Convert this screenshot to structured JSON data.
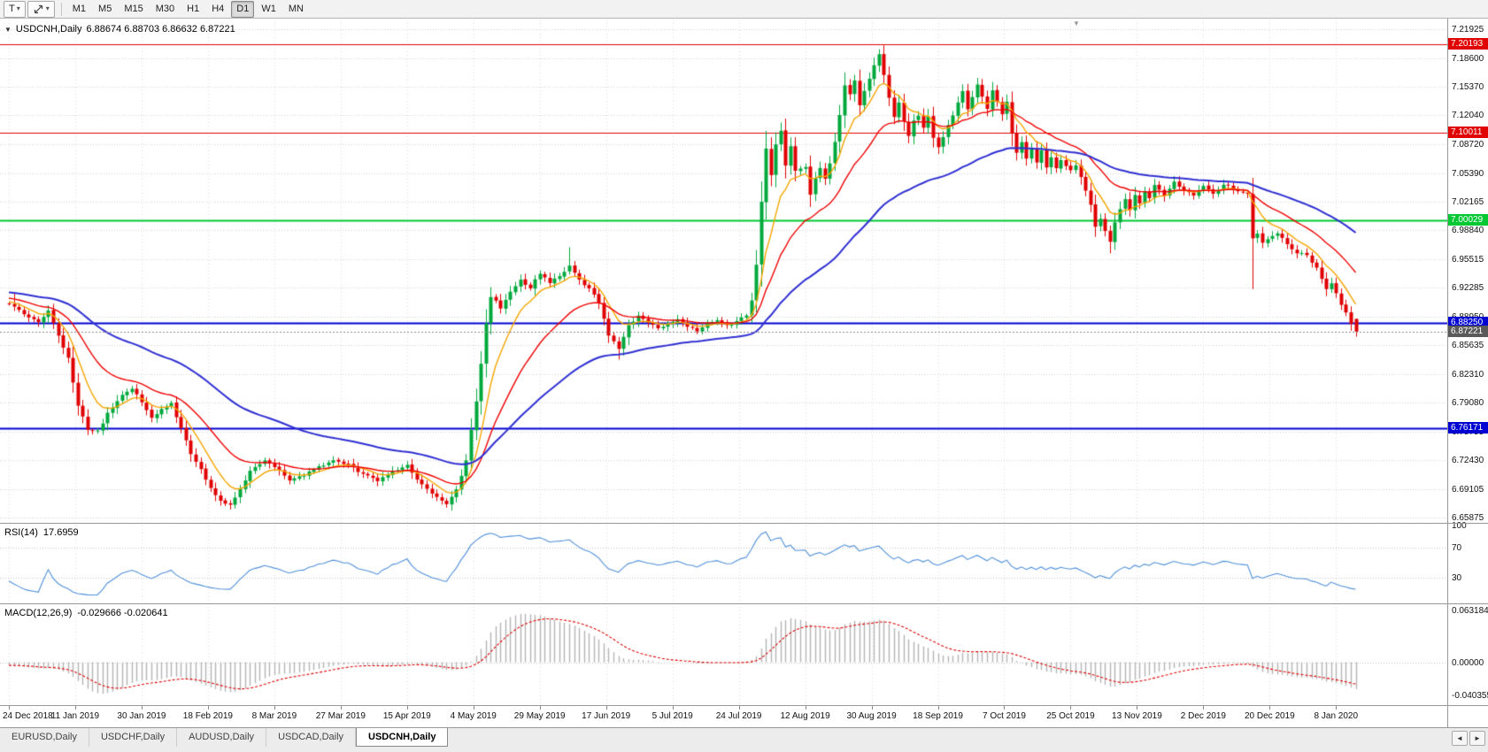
{
  "toolbar": {
    "text_tool": {
      "label": "T"
    },
    "timeframes": [
      {
        "label": "M1",
        "active": false
      },
      {
        "label": "M5",
        "active": false
      },
      {
        "label": "M15",
        "active": false
      },
      {
        "label": "M30",
        "active": false
      },
      {
        "label": "H1",
        "active": false
      },
      {
        "label": "H4",
        "active": false
      },
      {
        "label": "D1",
        "active": true
      },
      {
        "label": "W1",
        "active": false
      },
      {
        "label": "MN",
        "active": false
      }
    ]
  },
  "icons": {
    "dropdown": "▾",
    "title_marker": "▼",
    "shift_marker": "▼",
    "tab_prev": "◄",
    "tab_next": "►"
  },
  "chart": {
    "title": "USDCNH,Daily",
    "ohlc_text": "6.88674 6.88703 6.86632 6.87221"
  },
  "price_axis": {
    "ticks": [
      "7.21925",
      "7.18600",
      "7.15370",
      "7.12040",
      "7.08720",
      "7.05390",
      "7.02165",
      "6.98840",
      "6.95515",
      "6.92285",
      "6.88950",
      "6.85635",
      "6.82310",
      "6.79080",
      "6.75755",
      "6.72430",
      "6.69105",
      "6.65875"
    ]
  },
  "hlines": [
    {
      "label": "7.20193",
      "value": 7.20193,
      "color": "#e00000"
    },
    {
      "label": "7.10011",
      "value": 7.10011,
      "color": "#e00000"
    },
    {
      "label": "7.00029",
      "value": 7.00029,
      "color": "#00c832"
    },
    {
      "label": "6.88250",
      "value": 6.8825,
      "color": "#0000d2"
    },
    {
      "label": "6.76171",
      "value": 6.76171,
      "color": "#0000d2"
    }
  ],
  "current_price": {
    "label": "6.87221",
    "value": 6.87221,
    "badge_color": "#5a5a5a",
    "line_color": "#8a8a8a"
  },
  "rsi_panel": {
    "name": "RSI(14)",
    "value": "17.6959",
    "axis_labels": [
      [
        "100",
        100
      ],
      [
        "70",
        70
      ],
      [
        "30",
        30
      ]
    ],
    "levels": [
      70,
      30
    ],
    "line_color": "#4f8fd9"
  },
  "macd_panel": {
    "name": "MACD(12,26,9)",
    "values": "-0.029666 -0.020641",
    "axis_labels": [
      [
        "0.063184",
        0.063184
      ],
      [
        "0.00000",
        0
      ],
      [
        "-0.040355",
        -0.040355
      ]
    ],
    "hist_color": "#b4b4b4",
    "signal_color": "#dd0000"
  },
  "date_axis": {
    "labels": [
      "24 Dec 2018",
      "11 Jan 2019",
      "30 Jan 2019",
      "18 Feb 2019",
      "8 Mar 2019",
      "27 Mar 2019",
      "15 Apr 2019",
      "4 May 2019",
      "29 May 2019",
      "17 Jun 2019",
      "5 Jul 2019",
      "24 Jul 2019",
      "12 Aug 2019",
      "30 Aug 2019",
      "18 Sep 2019",
      "7 Oct 2019",
      "25 Oct 2019",
      "13 Nov 2019",
      "2 Dec 2019",
      "20 Dec 2019",
      "8 Jan 2020"
    ]
  },
  "tabs": [
    {
      "label": "EURUSD,Daily",
      "active": false
    },
    {
      "label": "USDCHF,Daily",
      "active": false
    },
    {
      "label": "AUDUSD,Daily",
      "active": false
    },
    {
      "label": "USDCAD,Daily",
      "active": false
    },
    {
      "label": "USDCNH,Daily",
      "active": true
    }
  ],
  "chart_data": {
    "type": "candlestick",
    "symbol": "USDCNH",
    "timeframe": "Daily",
    "title": "USDCNH,Daily",
    "last_bar": {
      "open": 6.88674,
      "high": 6.88703,
      "low": 6.86632,
      "close": 6.87221
    },
    "price_range": [
      6.65875,
      7.21925
    ],
    "x_range_labels": [
      "24 Dec 2018",
      "8 Jan 2020"
    ],
    "horizontal_levels": [
      7.20193,
      7.10011,
      7.00029,
      6.8825,
      6.76171
    ],
    "indicators": {
      "rsi": {
        "period": 14,
        "last": 17.6959,
        "levels": [
          30,
          70
        ]
      },
      "macd": {
        "fast": 12,
        "slow": 26,
        "signal": 9,
        "last_main": -0.029666,
        "last_signal": -0.020641,
        "range": [
          -0.040355,
          0.063184
        ]
      },
      "moving_averages": [
        {
          "period": 8,
          "color": "#f5a500"
        },
        {
          "period": 21,
          "color": "#f00000"
        },
        {
          "period": 55,
          "color": "#2f2fd2"
        }
      ]
    },
    "bull_color": "#00a83c",
    "bear_color": "#e00000",
    "bars_total": 275,
    "warmup_bars": 40,
    "noise": 0.003,
    "anchors": [
      [
        0,
        6.905
      ],
      [
        3,
        6.893
      ],
      [
        6,
        6.884
      ],
      [
        8,
        6.895
      ],
      [
        10,
        6.868
      ],
      [
        12,
        6.842
      ],
      [
        14,
        6.788
      ],
      [
        16,
        6.76
      ],
      [
        18,
        6.758
      ],
      [
        20,
        6.778
      ],
      [
        23,
        6.8
      ],
      [
        25,
        6.806
      ],
      [
        27,
        6.792
      ],
      [
        29,
        6.772
      ],
      [
        31,
        6.783
      ],
      [
        33,
        6.789
      ],
      [
        35,
        6.76
      ],
      [
        37,
        6.732
      ],
      [
        39,
        6.714
      ],
      [
        41,
        6.692
      ],
      [
        43,
        6.678
      ],
      [
        45,
        6.673
      ],
      [
        47,
        6.692
      ],
      [
        49,
        6.713
      ],
      [
        52,
        6.723
      ],
      [
        54,
        6.717
      ],
      [
        57,
        6.702
      ],
      [
        60,
        6.708
      ],
      [
        63,
        6.717
      ],
      [
        66,
        6.723
      ],
      [
        69,
        6.719
      ],
      [
        72,
        6.709
      ],
      [
        75,
        6.701
      ],
      [
        78,
        6.712
      ],
      [
        81,
        6.719
      ],
      [
        83,
        6.703
      ],
      [
        85,
        6.691
      ],
      [
        87,
        6.681
      ],
      [
        89,
        6.673
      ],
      [
        91,
        6.692
      ],
      [
        93,
        6.724
      ],
      [
        95,
        6.792
      ],
      [
        96,
        6.835
      ],
      [
        97,
        6.882
      ],
      [
        98,
        6.913
      ],
      [
        100,
        6.9
      ],
      [
        102,
        6.917
      ],
      [
        104,
        6.931
      ],
      [
        106,
        6.923
      ],
      [
        108,
        6.939
      ],
      [
        110,
        6.929
      ],
      [
        112,
        6.936
      ],
      [
        114,
        6.947
      ],
      [
        116,
        6.931
      ],
      [
        118,
        6.921
      ],
      [
        120,
        6.906
      ],
      [
        122,
        6.869
      ],
      [
        124,
        6.853
      ],
      [
        126,
        6.879
      ],
      [
        128,
        6.891
      ],
      [
        130,
        6.883
      ],
      [
        132,
        6.875
      ],
      [
        134,
        6.881
      ],
      [
        136,
        6.887
      ],
      [
        138,
        6.879
      ],
      [
        140,
        6.873
      ],
      [
        142,
        6.881
      ],
      [
        144,
        6.885
      ],
      [
        146,
        6.879
      ],
      [
        148,
        6.883
      ],
      [
        150,
        6.892
      ],
      [
        151,
        6.907
      ],
      [
        152,
        6.948
      ],
      [
        153,
        7.022
      ],
      [
        154,
        7.082
      ],
      [
        155,
        7.052
      ],
      [
        156,
        7.088
      ],
      [
        157,
        7.102
      ],
      [
        158,
        7.064
      ],
      [
        159,
        7.086
      ],
      [
        160,
        7.057
      ],
      [
        162,
        7.061
      ],
      [
        163,
        7.03
      ],
      [
        164,
        7.047
      ],
      [
        165,
        7.061
      ],
      [
        166,
        7.047
      ],
      [
        167,
        7.066
      ],
      [
        168,
        7.091
      ],
      [
        169,
        7.121
      ],
      [
        170,
        7.156
      ],
      [
        171,
        7.146
      ],
      [
        172,
        7.161
      ],
      [
        173,
        7.132
      ],
      [
        174,
        7.149
      ],
      [
        175,
        7.163
      ],
      [
        176,
        7.179
      ],
      [
        177,
        7.191
      ],
      [
        178,
        7.166
      ],
      [
        179,
        7.141
      ],
      [
        180,
        7.119
      ],
      [
        181,
        7.136
      ],
      [
        182,
        7.113
      ],
      [
        183,
        7.096
      ],
      [
        184,
        7.113
      ],
      [
        185,
        7.121
      ],
      [
        186,
        7.106
      ],
      [
        187,
        7.119
      ],
      [
        188,
        7.096
      ],
      [
        189,
        7.083
      ],
      [
        190,
        7.096
      ],
      [
        191,
        7.109
      ],
      [
        192,
        7.121
      ],
      [
        193,
        7.136
      ],
      [
        194,
        7.149
      ],
      [
        195,
        7.126
      ],
      [
        196,
        7.141
      ],
      [
        197,
        7.156
      ],
      [
        198,
        7.143
      ],
      [
        199,
        7.129
      ],
      [
        200,
        7.149
      ],
      [
        201,
        7.136
      ],
      [
        202,
        7.121
      ],
      [
        203,
        7.136
      ],
      [
        204,
        7.099
      ],
      [
        205,
        7.076
      ],
      [
        206,
        7.089
      ],
      [
        207,
        7.071
      ],
      [
        208,
        7.083
      ],
      [
        209,
        7.066
      ],
      [
        210,
        7.079
      ],
      [
        211,
        7.061
      ],
      [
        212,
        7.071
      ],
      [
        213,
        7.059
      ],
      [
        214,
        7.069
      ],
      [
        215,
        7.063
      ],
      [
        216,
        7.057
      ],
      [
        217,
        7.063
      ],
      [
        218,
        7.049
      ],
      [
        219,
        7.033
      ],
      [
        220,
        7.019
      ],
      [
        221,
        6.993
      ],
      [
        222,
        7.003
      ],
      [
        223,
        6.989
      ],
      [
        224,
        6.976
      ],
      [
        225,
        6.999
      ],
      [
        226,
        7.013
      ],
      [
        227,
        7.023
      ],
      [
        228,
        7.013
      ],
      [
        229,
        7.029
      ],
      [
        230,
        7.019
      ],
      [
        231,
        7.033
      ],
      [
        232,
        7.026
      ],
      [
        233,
        7.039
      ],
      [
        235,
        7.029
      ],
      [
        237,
        7.043
      ],
      [
        239,
        7.033
      ],
      [
        241,
        7.029
      ],
      [
        243,
        7.039
      ],
      [
        245,
        7.031
      ],
      [
        247,
        7.041
      ],
      [
        249,
        7.036
      ],
      [
        251,
        7.033
      ],
      [
        252,
        7.031
      ],
      [
        253,
        6.979
      ],
      [
        254,
        6.986
      ],
      [
        255,
        6.973
      ],
      [
        256,
        6.979
      ],
      [
        258,
        6.986
      ],
      [
        260,
        6.973
      ],
      [
        262,
        6.963
      ],
      [
        264,
        6.959
      ],
      [
        266,
        6.946
      ],
      [
        267,
        6.933
      ],
      [
        268,
        6.921
      ],
      [
        269,
        6.929
      ],
      [
        270,
        6.916
      ],
      [
        271,
        6.903
      ],
      [
        272,
        6.894
      ],
      [
        273,
        6.881
      ],
      [
        274,
        6.8722
      ]
    ],
    "overrides": {
      "1": {
        "high": 6.917
      },
      "45": {
        "low": 6.668
      },
      "89": {
        "low": 6.67
      },
      "114": {
        "high": 6.969
      },
      "124": {
        "low": 6.84
      },
      "177": {
        "high": 7.1962
      },
      "224": {
        "low": 6.962
      },
      "253": {
        "low": 6.921
      },
      "273": {
        "close": 6.881
      },
      "274": {
        "open": 6.88674,
        "high": 6.88703,
        "low": 6.86632,
        "close": 6.87221
      }
    }
  }
}
